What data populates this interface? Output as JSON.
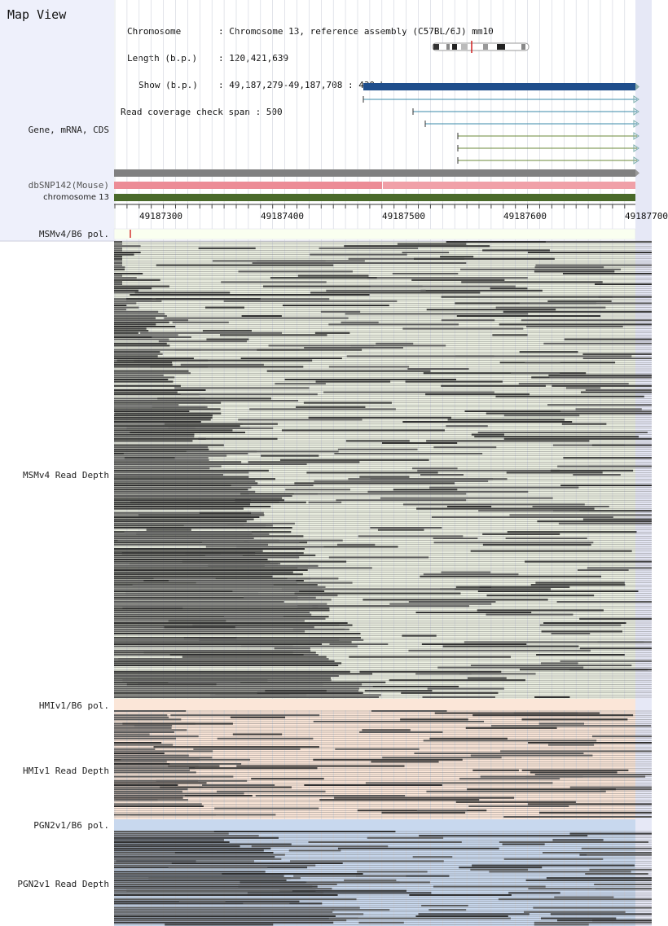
{
  "title": "Map View",
  "info": {
    "rows": [
      {
        "key": "Chromosome",
        "value": "Chromosome 13, reference assembly (C57BL/6J) mm10"
      },
      {
        "key": "Length (b.p.)",
        "value": "120,421,639"
      },
      {
        "key": "Show (b.p.)",
        "value": "49,187,279-49,187,708 : 430 bp"
      }
    ],
    "coverage": "Read coverage check span : 500"
  },
  "tracks": {
    "gene": "Gene, mRNA, CDS",
    "dbsnp": "dbSNP142(Mouse)",
    "chromosome": "chromosome 13",
    "msm_pol": "MSMv4/B6 pol.",
    "msm_depth": "MSMv4 Read Depth",
    "hmi_pol": "HMIv1/B6 pol.",
    "hmi_depth": "HMIv1 Read Depth",
    "pgn_pol": "PGN2v1/B6 pol.",
    "pgn_depth": "PGN2v1 Read Depth"
  },
  "ruler": {
    "labels": [
      "49187300",
      "49187400",
      "49187500",
      "49187600",
      "49187700"
    ]
  },
  "colors": {
    "gene_bar": "#1f4e8c",
    "mrna_line": "#3a8aa8",
    "cds_line": "#6b8a3a",
    "dbsnp_bar": "#808080",
    "snp_pink": "#f0a0a8",
    "chrom_green": "#4a6a2a",
    "msm_bg": "#ebefe1",
    "hmi_bg": "#fbe6d8",
    "pgn_bg": "#c8d8ee",
    "read_dark": "#222222",
    "read_mid": "#555555"
  }
}
